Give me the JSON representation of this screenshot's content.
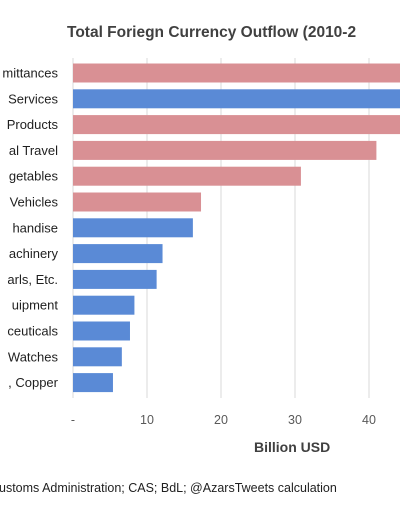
{
  "chart_data": {
    "type": "bar",
    "orientation": "horizontal",
    "title": "Total  Foriegn Currency Outflow (2010-2",
    "xlabel": "Billion USD",
    "ylabel": "",
    "xlim": [
      0,
      45
    ],
    "x_ticks": [
      "-",
      "10",
      "20",
      "30",
      "40"
    ],
    "grid": true,
    "categories": [
      "mittances",
      "Services",
      "Products",
      "al Travel",
      "getables",
      "Vehicles",
      "handise",
      "achinery",
      "arls, Etc.",
      "uipment",
      "ceuticals",
      "Watches",
      ", Copper"
    ],
    "values": [
      46,
      46,
      46,
      41,
      30.8,
      17.3,
      16.2,
      12.1,
      11.3,
      8.3,
      7.7,
      6.6,
      5.4
    ],
    "bar_colors": [
      "#d99094",
      "#5a8ad6",
      "#d99094",
      "#d99094",
      "#d99094",
      "#d99094",
      "#5a8ad6",
      "#5a8ad6",
      "#5a8ad6",
      "#5a8ad6",
      "#5a8ad6",
      "#5a8ad6",
      "#5a8ad6"
    ],
    "source": "ustoms Administration; CAS; BdL; @AzarsTweets calculation"
  }
}
